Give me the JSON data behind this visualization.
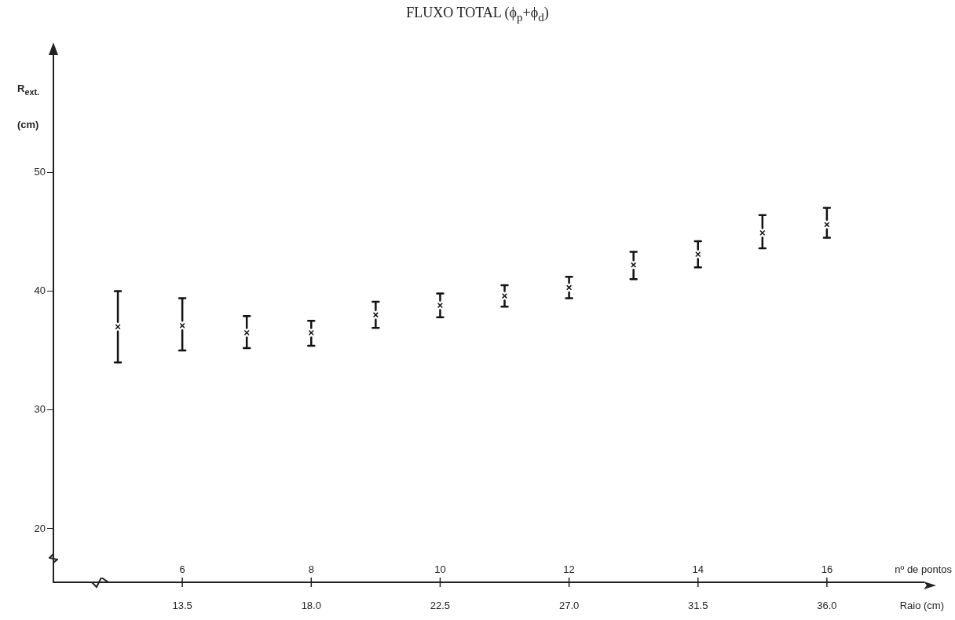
{
  "chart_data": {
    "type": "scatter",
    "title": "FLUXO TOTAL (ϕ$_{p}$+ϕ$_{d}$)",
    "xlabel": "nº de pontos",
    "x2label": "Raio (cm)",
    "ylabel": "R$_{ext.}$ (cm)",
    "x": [
      5,
      6,
      7,
      8,
      9,
      10,
      11,
      12,
      13,
      14,
      15,
      16
    ],
    "series": [
      {
        "color": "#111111",
        "values": [
          37.0,
          37.1,
          36.5,
          36.5,
          38.0,
          38.8,
          39.6,
          40.3,
          42.2,
          43.1,
          44.9,
          45.6
        ],
        "errors": [
          [
            34.0,
            40.0
          ],
          [
            35.0,
            39.4
          ],
          [
            35.2,
            37.9
          ],
          [
            35.4,
            37.5
          ],
          [
            36.9,
            39.1
          ],
          [
            37.8,
            39.8
          ],
          [
            38.7,
            40.5
          ],
          [
            39.4,
            41.2
          ],
          [
            41.0,
            43.3
          ],
          [
            42.0,
            44.2
          ],
          [
            43.6,
            46.4
          ],
          [
            44.5,
            47.0
          ]
        ]
      }
    ],
    "xlim": [
      4,
      17.5
    ],
    "xticks": [
      6,
      8,
      10,
      12,
      14,
      16
    ],
    "x2lim": [
      9,
      39.375
    ],
    "x2ticks": [
      {
        "value": 13.5,
        "label": "13.5"
      },
      {
        "value": 18,
        "label": "18.0"
      },
      {
        "value": 22.5,
        "label": "22.5"
      },
      {
        "value": 27,
        "label": "27.0"
      },
      {
        "value": 31.5,
        "label": "31.5"
      },
      {
        "value": 36,
        "label": "36.0"
      }
    ],
    "ylim": [
      15.5,
      60
    ],
    "yticks": [
      20,
      30,
      40,
      50
    ],
    "marker": "cross",
    "grid": false,
    "legend": false
  }
}
